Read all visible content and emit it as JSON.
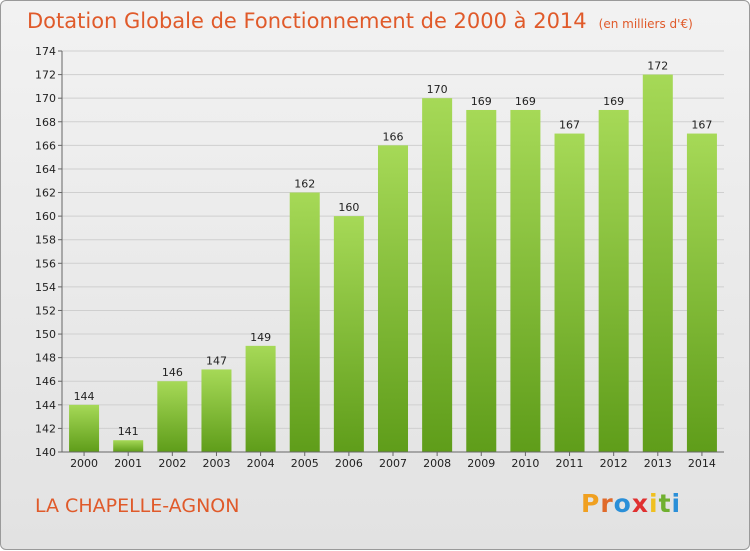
{
  "title": "Dotation Globale de Fonctionnement de 2000 à 2014",
  "unit": "(en milliers d'€)",
  "commune": "LA CHAPELLE-AGNON",
  "logo": {
    "letters": [
      "P",
      "r",
      "o",
      "x",
      "i",
      "t",
      "i"
    ],
    "colors": [
      "#f0a020",
      "#e06a2a",
      "#2a8fd8",
      "#e03030",
      "#f0c020",
      "#70b030",
      "#2a8fd8"
    ]
  },
  "colors": {
    "title": "#e05a2a",
    "bar_top": "#a6d957",
    "bar_bottom": "#5f9d1a",
    "grid": "#cfcfcf"
  },
  "chart_data": {
    "type": "bar",
    "title": "Dotation Globale de Fonctionnement de 2000 à 2014",
    "categories": [
      "2000",
      "2001",
      "2002",
      "2003",
      "2004",
      "2005",
      "2006",
      "2007",
      "2008",
      "2009",
      "2010",
      "2011",
      "2012",
      "2013",
      "2014"
    ],
    "values": [
      144,
      141,
      146,
      147,
      149,
      162,
      160,
      166,
      170,
      169,
      169,
      167,
      169,
      172,
      167
    ],
    "ylim": [
      140,
      174
    ],
    "yticks": [
      140,
      142,
      144,
      146,
      148,
      150,
      152,
      154,
      156,
      158,
      160,
      162,
      164,
      166,
      168,
      170,
      172,
      174
    ],
    "grid": true,
    "data_labels": true
  }
}
